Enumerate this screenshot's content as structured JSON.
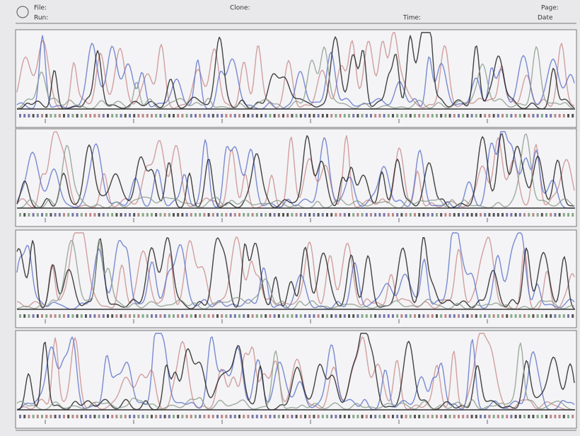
{
  "header": {
    "file_label": "File:",
    "run_label": "Run:",
    "clone_label": "Clone:",
    "page_label": "Page:",
    "time_label": "Time:",
    "date_label": "Date"
  }
}
